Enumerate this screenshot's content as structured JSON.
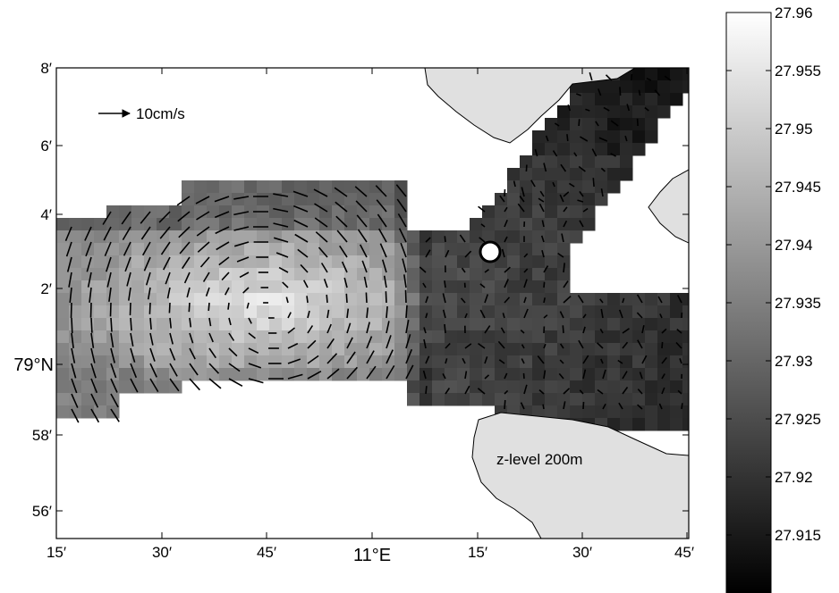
{
  "figure": {
    "x_tick_labels": [
      "15′",
      "30′",
      "45′",
      "11°E",
      "15′",
      "30′",
      "45′"
    ],
    "y_tick_labels": [
      "8′",
      "6′",
      "4′",
      "2′",
      "79°N",
      "58′",
      "56′"
    ],
    "scale_arrow_label": "10cm/s",
    "level_label": "z-level 200m",
    "station_marker": "circle"
  },
  "colorbar": {
    "labels": [
      "27.96",
      "27.955",
      "27.95",
      "27.945",
      "27.94",
      "27.935",
      "27.93",
      "27.925",
      "27.92",
      "27.915"
    ],
    "min": 27.91,
    "max": 27.96,
    "colormap": "gray"
  },
  "colors": {
    "land": "#e0e0e0",
    "no_data": "#ffffff",
    "frame": "#000000",
    "marker_fill": "#ffffff"
  }
}
